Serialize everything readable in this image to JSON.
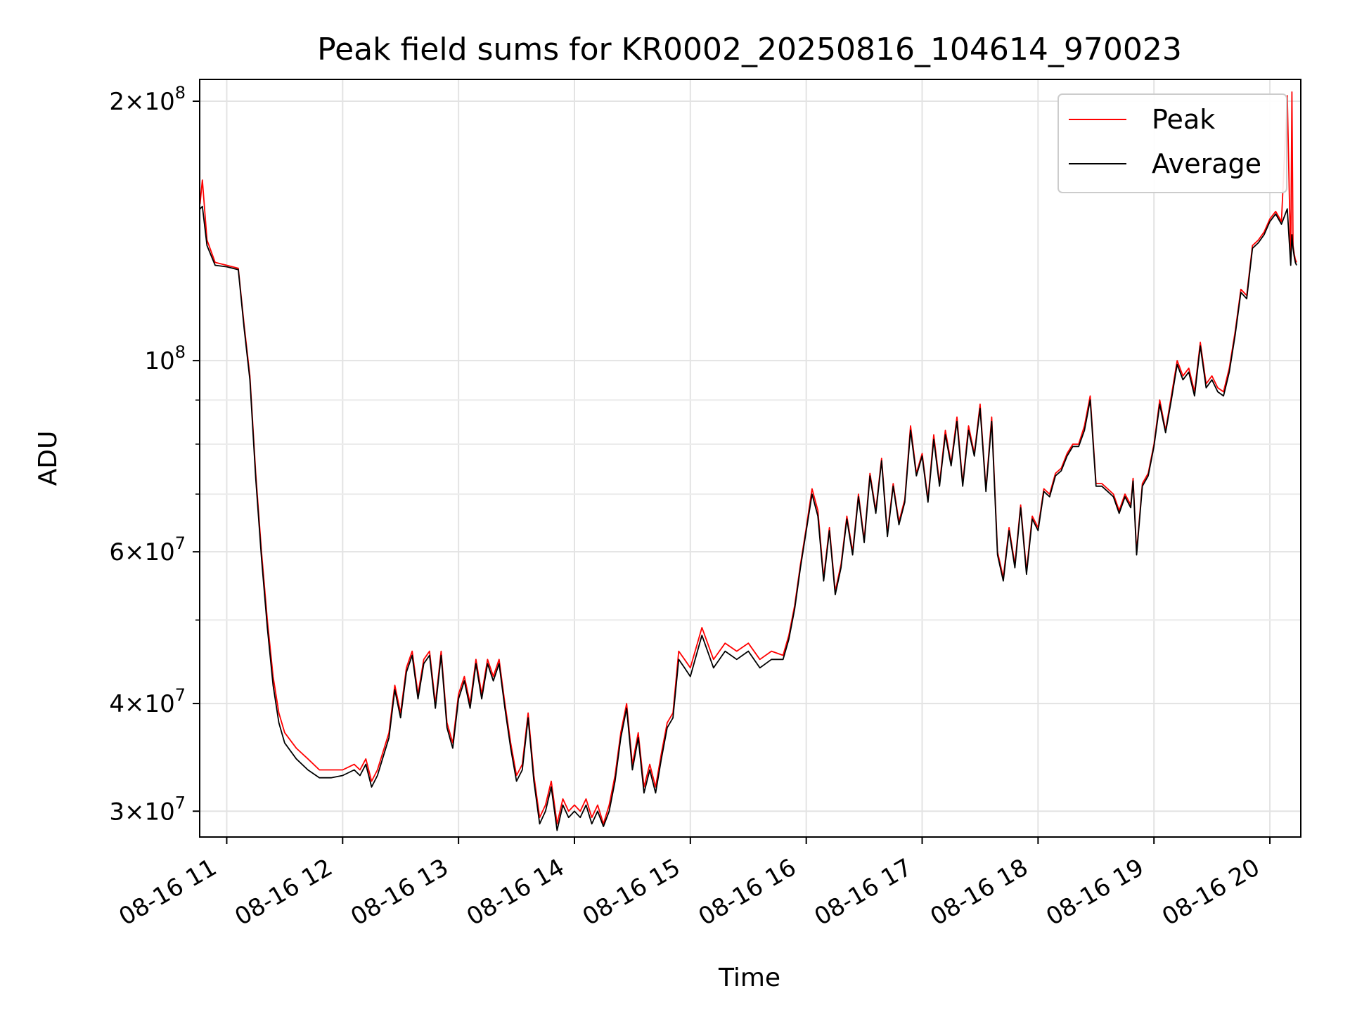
{
  "chart_data": {
    "type": "line",
    "title": "Peak field sums for KR0002_20250816_104614_970023",
    "xlabel": "Time",
    "ylabel": "ADU",
    "y_scale": "log",
    "xlim": [
      "08-16 10:46",
      "08-16 20:16"
    ],
    "ylim": [
      28000000,
      212000000
    ],
    "grid": true,
    "legend_position": "upper-right",
    "x_ticks": [
      "08-16 11",
      "08-16 12",
      "08-16 13",
      "08-16 14",
      "08-16 15",
      "08-16 16",
      "08-16 17",
      "08-16 18",
      "08-16 19",
      "08-16 20"
    ],
    "x_tick_hours": [
      11,
      12,
      13,
      14,
      15,
      16,
      17,
      18,
      19,
      20
    ],
    "y_ticks": [
      {
        "value": 30000000,
        "mantissa": "3",
        "exp": "7"
      },
      {
        "value": 40000000,
        "mantissa": "4",
        "exp": "7"
      },
      {
        "value": 60000000,
        "mantissa": "6",
        "exp": "7"
      },
      {
        "value": 100000000,
        "mantissa": "",
        "exp": "8"
      },
      {
        "value": 200000000,
        "mantissa": "2",
        "exp": "8"
      }
    ],
    "y_minor_ticks": [
      50000000,
      70000000,
      80000000,
      90000000
    ],
    "x_hours": [
      10.77,
      10.79,
      10.83,
      10.9,
      11.0,
      11.1,
      11.15,
      11.2,
      11.25,
      11.3,
      11.35,
      11.4,
      11.45,
      11.5,
      11.6,
      11.7,
      11.8,
      11.9,
      12.0,
      12.1,
      12.15,
      12.2,
      12.25,
      12.3,
      12.4,
      12.45,
      12.5,
      12.55,
      12.6,
      12.65,
      12.7,
      12.75,
      12.8,
      12.85,
      12.9,
      12.95,
      13.0,
      13.05,
      13.1,
      13.15,
      13.2,
      13.25,
      13.3,
      13.35,
      13.4,
      13.45,
      13.5,
      13.55,
      13.6,
      13.65,
      13.7,
      13.75,
      13.8,
      13.85,
      13.9,
      13.95,
      14.0,
      14.05,
      14.1,
      14.15,
      14.2,
      14.25,
      14.3,
      14.35,
      14.4,
      14.45,
      14.5,
      14.55,
      14.6,
      14.65,
      14.7,
      14.75,
      14.8,
      14.85,
      14.9,
      14.95,
      15.0,
      15.1,
      15.2,
      15.3,
      15.4,
      15.5,
      15.6,
      15.7,
      15.8,
      15.85,
      15.9,
      15.95,
      16.0,
      16.05,
      16.1,
      16.15,
      16.2,
      16.25,
      16.3,
      16.35,
      16.4,
      16.45,
      16.5,
      16.55,
      16.6,
      16.65,
      16.7,
      16.75,
      16.8,
      16.85,
      16.9,
      16.95,
      17.0,
      17.05,
      17.1,
      17.15,
      17.2,
      17.25,
      17.3,
      17.35,
      17.4,
      17.45,
      17.5,
      17.55,
      17.6,
      17.65,
      17.7,
      17.75,
      17.8,
      17.85,
      17.9,
      17.95,
      18.0,
      18.05,
      18.1,
      18.15,
      18.2,
      18.25,
      18.3,
      18.35,
      18.4,
      18.45,
      18.5,
      18.55,
      18.6,
      18.65,
      18.7,
      18.75,
      18.8,
      18.82,
      18.85,
      18.9,
      18.95,
      19.0,
      19.05,
      19.1,
      19.15,
      19.2,
      19.25,
      19.3,
      19.35,
      19.4,
      19.45,
      19.5,
      19.55,
      19.6,
      19.65,
      19.7,
      19.75,
      19.8,
      19.85,
      19.9,
      19.95,
      20.0,
      20.05,
      20.1,
      20.15,
      20.18,
      20.19,
      20.2,
      20.21,
      20.22,
      20.23,
      20.25,
      20.27
    ],
    "series": [
      {
        "name": "Peak",
        "color": "#ff0000",
        "values": [
          152000000,
          162000000,
          138000000,
          130000000,
          129000000,
          128000000,
          110000000,
          96000000,
          74000000,
          60000000,
          50000000,
          43000000,
          39000000,
          37000000,
          35500000,
          34500000,
          33500000,
          33500000,
          33500000,
          34000000,
          33500000,
          34500000,
          32500000,
          33500000,
          37000000,
          42000000,
          39000000,
          44000000,
          46000000,
          41000000,
          45000000,
          46000000,
          40000000,
          46000000,
          38000000,
          36000000,
          41000000,
          43000000,
          40000000,
          45000000,
          41000000,
          45000000,
          43000000,
          45000000,
          40000000,
          36000000,
          33000000,
          34000000,
          39000000,
          33000000,
          29500000,
          30500000,
          32500000,
          29000000,
          31000000,
          30000000,
          30500000,
          30000000,
          31000000,
          29500000,
          30500000,
          29000000,
          30500000,
          33000000,
          37000000,
          40000000,
          34000000,
          37000000,
          32000000,
          34000000,
          32000000,
          35000000,
          38000000,
          39000000,
          46000000,
          45000000,
          44000000,
          49000000,
          45000000,
          47000000,
          46000000,
          47000000,
          45000000,
          46000000,
          45500000,
          48000000,
          52000000,
          58000000,
          64000000,
          71000000,
          67000000,
          56000000,
          64000000,
          54000000,
          58000000,
          66000000,
          60000000,
          70000000,
          62000000,
          74000000,
          67000000,
          77000000,
          63000000,
          72000000,
          65000000,
          69000000,
          84000000,
          74000000,
          78000000,
          69000000,
          82000000,
          72000000,
          83000000,
          76000000,
          86000000,
          72000000,
          84000000,
          78000000,
          89000000,
          71000000,
          86000000,
          60000000,
          56000000,
          64000000,
          58000000,
          68000000,
          57000000,
          66000000,
          64000000,
          71000000,
          70000000,
          74000000,
          75000000,
          78000000,
          80000000,
          80000000,
          84000000,
          91000000,
          72000000,
          72000000,
          71000000,
          70000000,
          67000000,
          70000000,
          68000000,
          73000000,
          60000000,
          72000000,
          74000000,
          80000000,
          90000000,
          83000000,
          91000000,
          100000000,
          96000000,
          98000000,
          92000000,
          105000000,
          94000000,
          96000000,
          93000000,
          92000000,
          98000000,
          108000000,
          121000000,
          119000000,
          136000000,
          138000000,
          141000000,
          146000000,
          149000000,
          145000000,
          203000000,
          130000000,
          205000000,
          136000000,
          133000000,
          131000000,
          130000000
        ]
      },
      {
        "name": "Average",
        "color": "#000000",
        "values": [
          150000000,
          151000000,
          136000000,
          129000000,
          128500000,
          127500000,
          109000000,
          95000000,
          73000000,
          59000000,
          49000000,
          42000000,
          38000000,
          36000000,
          34500000,
          33500000,
          32800000,
          32800000,
          33000000,
          33500000,
          33000000,
          34000000,
          32000000,
          33000000,
          36500000,
          41500000,
          38500000,
          43500000,
          45500000,
          40500000,
          44500000,
          45500000,
          39500000,
          45500000,
          37500000,
          35500000,
          40500000,
          42500000,
          39500000,
          44500000,
          40500000,
          44500000,
          42500000,
          44500000,
          39500000,
          35500000,
          32500000,
          33500000,
          38500000,
          32500000,
          29000000,
          30000000,
          32000000,
          28500000,
          30500000,
          29500000,
          30000000,
          29500000,
          30500000,
          29000000,
          30000000,
          28800000,
          30000000,
          32500000,
          36500000,
          39500000,
          33500000,
          36500000,
          31500000,
          33500000,
          31500000,
          34500000,
          37500000,
          38500000,
          45000000,
          44000000,
          43000000,
          48000000,
          44000000,
          46000000,
          45000000,
          46000000,
          44000000,
          45000000,
          45000000,
          47500000,
          51500000,
          57500000,
          63500000,
          70000000,
          66000000,
          55500000,
          63500000,
          53500000,
          57500000,
          65500000,
          59500000,
          69500000,
          61500000,
          73500000,
          66500000,
          76500000,
          62500000,
          71500000,
          64500000,
          68500000,
          83000000,
          73500000,
          77500000,
          68500000,
          81000000,
          71500000,
          82000000,
          75500000,
          85000000,
          71500000,
          83000000,
          77500000,
          88000000,
          70500000,
          85000000,
          59500000,
          55500000,
          63500000,
          57500000,
          67500000,
          56500000,
          65500000,
          63500000,
          70500000,
          69500000,
          73500000,
          74500000,
          77500000,
          79500000,
          79500000,
          83000000,
          90000000,
          71500000,
          71500000,
          70500000,
          69500000,
          66500000,
          69500000,
          67500000,
          72500000,
          59500000,
          71500000,
          73500000,
          79500000,
          89000000,
          82500000,
          90000000,
          99000000,
          95000000,
          97000000,
          91000000,
          104000000,
          93000000,
          95000000,
          92000000,
          91000000,
          97000000,
          107000000,
          120000000,
          118000000,
          135000000,
          137000000,
          140000000,
          145000000,
          148000000,
          144000000,
          150000000,
          129000000,
          140000000,
          135000000,
          132000000,
          130000000,
          129000000
        ]
      }
    ]
  }
}
